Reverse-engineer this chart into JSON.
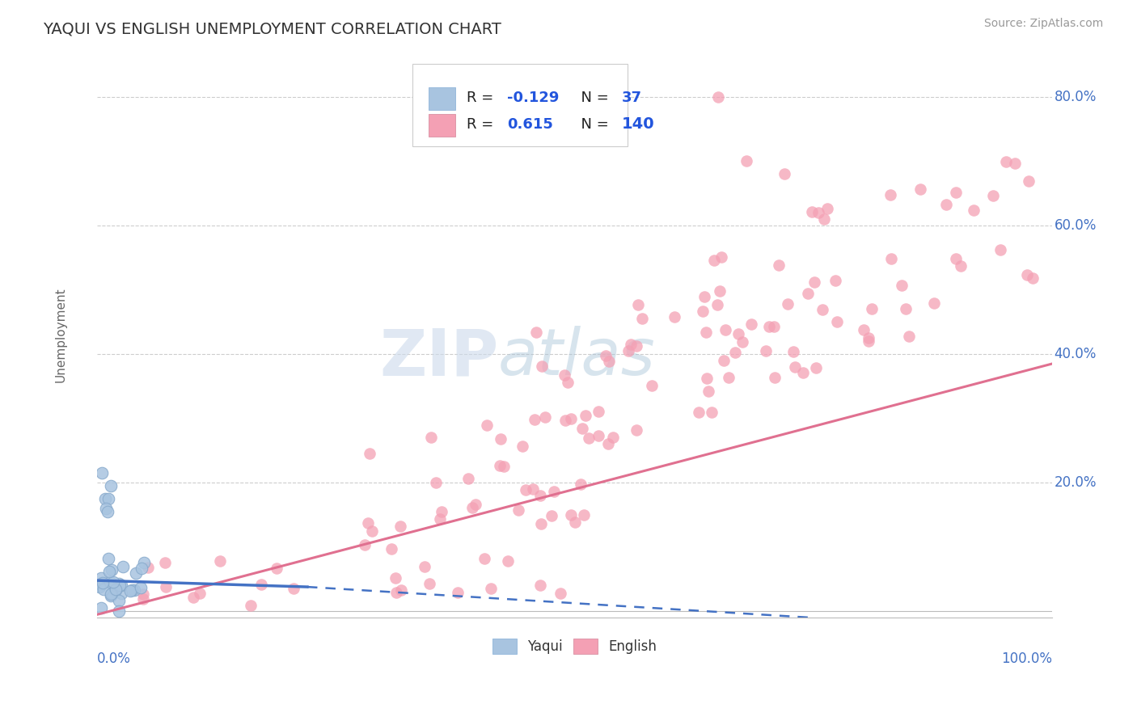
{
  "title": "YAQUI VS ENGLISH UNEMPLOYMENT CORRELATION CHART",
  "source": "Source: ZipAtlas.com",
  "ylabel": "Unemployment",
  "yaqui_R": -0.129,
  "yaqui_N": 37,
  "english_R": 0.615,
  "english_N": 140,
  "yaqui_color": "#a8c4e0",
  "english_color": "#f4a0b4",
  "yaqui_line_color": "#4472c4",
  "english_line_color": "#e07090",
  "axis_label_color": "#4472c4",
  "legend_R_color": "#2255dd",
  "legend_N_color": "#2255dd",
  "background_color": "#ffffff",
  "grid_color": "#c8c8c8",
  "xlim": [
    0.0,
    1.0
  ],
  "ylim": [
    -0.01,
    0.87
  ],
  "english_line_x0": 0.0,
  "english_line_y0": -0.005,
  "english_line_x1": 1.0,
  "english_line_y1": 0.385,
  "yaqui_line_x0": 0.0,
  "yaqui_line_y0": 0.048,
  "yaqui_line_x1_solid": 0.22,
  "yaqui_line_y1_solid": 0.038,
  "yaqui_line_x1_dashed": 0.75,
  "yaqui_line_y1_dashed": -0.01
}
